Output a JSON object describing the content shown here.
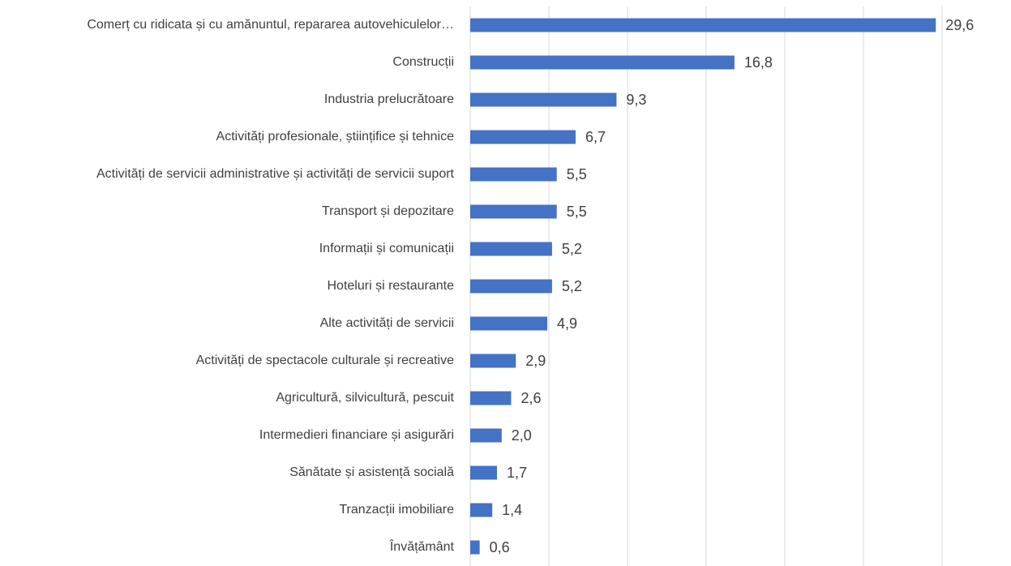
{
  "chart_data": {
    "type": "bar",
    "orientation": "horizontal",
    "categories": [
      "Comerț cu ridicata și cu amănuntul, repararea autovehiculelor…",
      "Construcții",
      "Industria prelucrătoare",
      "Activități profesionale, științifice și tehnice",
      "Activități de servicii administrative și activități de servicii suport",
      "Transport și depozitare",
      "Informații și comunicații",
      "Hoteluri și restaurante",
      "Alte activități de servicii",
      "Activități de spectacole culturale și recreative",
      "Agricultură, silvicultură, pescuit",
      "Intermedieri financiare și asigurări",
      "Sănătate și asistență socială",
      "Tranzacții imobiliare",
      "Învățământ"
    ],
    "values": [
      29.6,
      16.8,
      9.3,
      6.7,
      5.5,
      5.5,
      5.2,
      5.2,
      4.9,
      2.9,
      2.6,
      2.0,
      1.7,
      1.4,
      0.6
    ],
    "value_labels": [
      "29,6",
      "16,8",
      "9,3",
      "6,7",
      "5,5",
      "5,5",
      "5,2",
      "5,2",
      "4,9",
      "2,9",
      "2,6",
      "2,0",
      "1,7",
      "1,4",
      "0,6"
    ],
    "color": "#4472c4",
    "xlim": [
      0,
      30
    ],
    "xticks": [
      0,
      5,
      10,
      15,
      20,
      25,
      30
    ],
    "grid": true
  }
}
